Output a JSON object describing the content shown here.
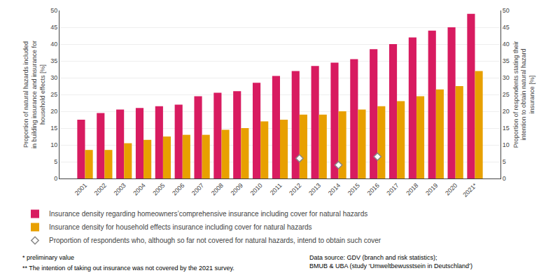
{
  "chart_data": {
    "type": "bar",
    "categories": [
      "2001",
      "2002",
      "2003",
      "2004",
      "2005",
      "2006",
      "2007",
      "2008",
      "2009",
      "2010",
      "2011",
      "2012",
      "2013",
      "2014",
      "2015",
      "2016",
      "2017",
      "2018",
      "2019",
      "2020",
      "2021*"
    ],
    "series": [
      {
        "name": "Insurance density regarding homeowners’comprehensive insurance including cover for natural hazards",
        "type": "bar",
        "color": "#D81B60",
        "values": [
          17.5,
          19.5,
          20.5,
          21.0,
          21.5,
          22.0,
          24.5,
          25.5,
          26.0,
          28.5,
          30.5,
          32.0,
          33.5,
          34.5,
          35.5,
          38.5,
          40.0,
          42.0,
          44.0,
          45.0,
          49.0
        ]
      },
      {
        "name": "Insurance density for household effects insurance including cover for natural hazards",
        "type": "bar",
        "color": "#E8A000",
        "values": [
          8.5,
          8.5,
          10.5,
          11.5,
          12.5,
          13.0,
          13.0,
          14.5,
          15.0,
          17.0,
          17.5,
          19.0,
          19.0,
          20.0,
          20.5,
          21.5,
          23.0,
          24.5,
          26.5,
          27.5,
          32.0
        ]
      },
      {
        "name": "Proportion of respondents who, although so far not covered for natural hazards, intend to obtain such cover",
        "type": "scatter",
        "marker": "diamond",
        "color": "#888888",
        "axis": "y2",
        "values": [
          null,
          null,
          null,
          null,
          null,
          null,
          null,
          null,
          null,
          null,
          null,
          6.0,
          null,
          4.0,
          null,
          6.5,
          null,
          null,
          null,
          null,
          null
        ]
      }
    ],
    "ylabel": "Proportion of natural hazards included\nin building insurance and insurance for\nhousehold effects [%]",
    "y2label": "Proportion of respondents stating their\nintention to obtain natural hazard\ninsurance [%]",
    "ylim": [
      0,
      50
    ],
    "yticks": [
      0,
      5,
      10,
      15,
      20,
      25,
      30,
      35,
      40,
      45,
      50
    ],
    "y2lim": [
      0,
      50
    ],
    "y2ticks": [
      0,
      5,
      10,
      15,
      20,
      25,
      30,
      35,
      40,
      45,
      50
    ],
    "grid": true,
    "legend": "bottom",
    "annotations": [
      "* preliminary value",
      "** The intention of taking out insurance was not covered by the 2021 survey.",
      "Data source: GDV (branch and risk statistics);\nBMUB & UBA (study ‘Umweltbewusstsein in Deutschland’)"
    ]
  }
}
